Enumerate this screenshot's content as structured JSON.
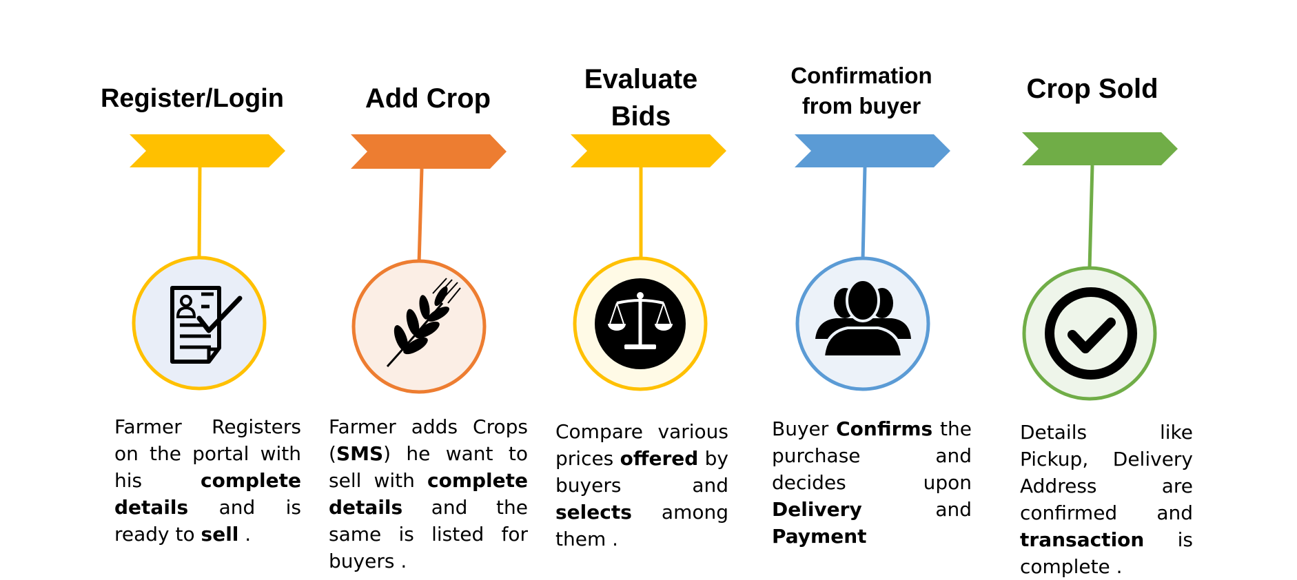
{
  "steps": [
    {
      "title": "Register/Login",
      "color": "#FFC000",
      "icon_fill": "#E9EEF8",
      "icon": "registration-form-icon",
      "description": [
        {
          "text": "Farmer Registers on the portal with his ",
          "bold": false
        },
        {
          "text": "complete details",
          "bold": true
        },
        {
          "text": " and is ready to ",
          "bold": false
        },
        {
          "text": "sell",
          "bold": true
        },
        {
          "text": " .",
          "bold": false
        }
      ]
    },
    {
      "title": "Add Crop",
      "color": "#ED7D31",
      "icon_fill": "#FBEEE5",
      "icon": "wheat-icon",
      "description": [
        {
          "text": "Farmer adds Crops (",
          "bold": false
        },
        {
          "text": "SMS",
          "bold": true
        },
        {
          "text": ") he want to sell with ",
          "bold": false
        },
        {
          "text": "complete details",
          "bold": true
        },
        {
          "text": " and the same is listed for buyers .",
          "bold": false
        }
      ]
    },
    {
      "title": "Evaluate Bids",
      "color": "#FFC000",
      "icon_fill": "#FFFAE6",
      "icon": "scales-icon",
      "description": [
        {
          "text": "Compare various prices ",
          "bold": false
        },
        {
          "text": "offered",
          "bold": true
        },
        {
          "text": " by buyers and ",
          "bold": false
        },
        {
          "text": "selects",
          "bold": true
        },
        {
          "text": " among them .",
          "bold": false
        }
      ]
    },
    {
      "title": "Confirmation from buyer",
      "color": "#5B9BD5",
      "icon_fill": "#ECF2F9",
      "icon": "users-icon",
      "description": [
        {
          "text": "Buyer ",
          "bold": false
        },
        {
          "text": "Confirms",
          "bold": true
        },
        {
          "text": " the purchase and decides upon ",
          "bold": false
        },
        {
          "text": "Delivery",
          "bold": true
        },
        {
          "text": " and ",
          "bold": false
        },
        {
          "text": "Payment",
          "bold": true
        }
      ]
    },
    {
      "title": "Crop Sold",
      "color": "#70AD47",
      "icon_fill": "#EEF5EA",
      "icon": "check-circle-icon",
      "description": [
        {
          "text": "Details like Pickup, Delivery Address are confirmed and ",
          "bold": false
        },
        {
          "text": "transaction",
          "bold": true
        },
        {
          "text": " is complete .",
          "bold": false
        }
      ]
    }
  ]
}
